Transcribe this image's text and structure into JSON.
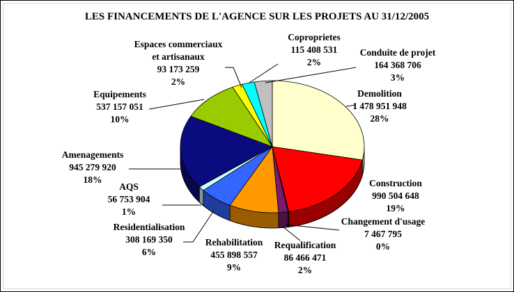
{
  "chart_data": {
    "type": "pie",
    "title": "LES FINANCEMENTS DE L'AGENCE SUR LES PROJETS AU 31/12/2005",
    "slices": [
      {
        "name": "Demolition",
        "value": "1 478 951 948",
        "pct": "28%",
        "amount": 1478951948,
        "color": "#ffffcc"
      },
      {
        "name": "Construction",
        "value": "990 504 648",
        "pct": "19%",
        "amount": 990504648,
        "color": "#ff0000"
      },
      {
        "name": "Changement d'usage",
        "value": "7 467 795",
        "pct": "0%",
        "amount": 7467795,
        "color": "#8b0a45"
      },
      {
        "name": "Requalification",
        "value": "86 466 471",
        "pct": "2%",
        "amount": 86466471,
        "color": "#7a1a6f"
      },
      {
        "name": "Rehabilitation",
        "value": "455 898 557",
        "pct": "9%",
        "amount": 455898557,
        "color": "#ff9900"
      },
      {
        "name": "Residentialisation",
        "value": "308 169 350",
        "pct": "6%",
        "amount": 308169350,
        "color": "#3366ff"
      },
      {
        "name": "AQS",
        "value": "56 753 904",
        "pct": "1%",
        "amount": 56753904,
        "color": "#ccffff"
      },
      {
        "name": "Amenagements",
        "value": "945 279 920",
        "pct": "18%",
        "amount": 945279920,
        "color": "#0b0b80"
      },
      {
        "name": "Equipements",
        "value": "537 157 051",
        "pct": "10%",
        "amount": 537157051,
        "color": "#99cc00"
      },
      {
        "name": "Espaces commerciaux et artisanaux",
        "name_lines": [
          "Espaces commerciaux",
          "et artisanaux"
        ],
        "value": "93 173 259",
        "pct": "2%",
        "amount": 93173259,
        "color": "#ffff00"
      },
      {
        "name": "Coproprietes",
        "value": "115 408 531",
        "pct": "2%",
        "amount": 115408531,
        "color": "#00ffff"
      },
      {
        "name": "Conduite de projet",
        "value": "164 368 706",
        "pct": "3%",
        "amount": 164368706,
        "color": "#c0c0c0"
      }
    ]
  }
}
